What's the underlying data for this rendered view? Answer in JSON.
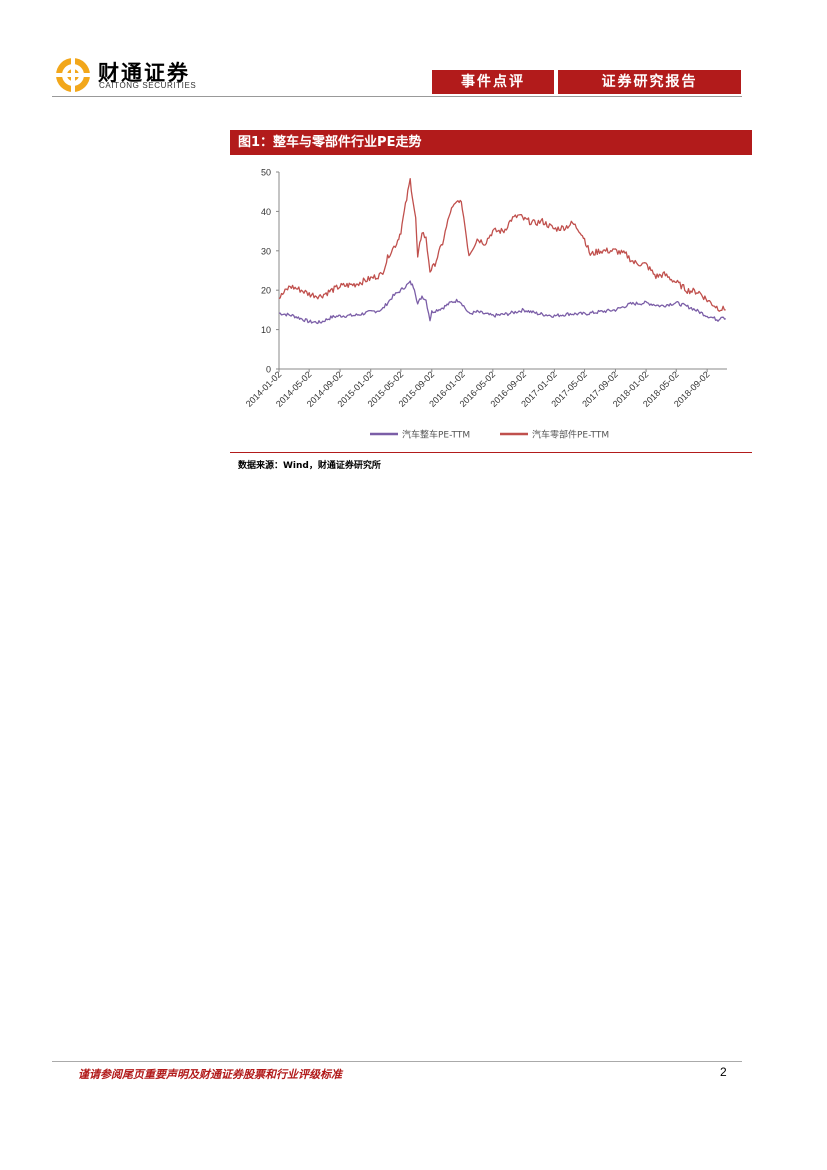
{
  "header": {
    "logo_cn": "财通证券",
    "logo_en": "CAITONG SECURITIES",
    "tag_event": "事件点评",
    "tag_report": "证券研究报告"
  },
  "figure": {
    "title": "图1：整车与零部件行业PE走势",
    "source": "数据来源：Wind，财通证券研究所"
  },
  "chart_data": {
    "type": "line",
    "title": "",
    "xlabel": "",
    "ylabel": "",
    "ylim": [
      0,
      50
    ],
    "yticks": [
      0,
      10,
      20,
      30,
      40,
      50
    ],
    "xticks": [
      "2014-01-02",
      "2014-05-02",
      "2014-09-02",
      "2015-01-02",
      "2015-05-02",
      "2015-09-02",
      "2016-01-02",
      "2016-05-02",
      "2016-09-02",
      "2017-01-02",
      "2017-05-02",
      "2017-09-02",
      "2018-01-02",
      "2018-05-02",
      "2018-09-02"
    ],
    "grid": false,
    "legend": "bottom",
    "series": [
      {
        "name": "汽车整车PE-TTM",
        "color": "#7b5ea7",
        "points": [
          [
            "2014-01-02",
            14.2
          ],
          [
            "2014-03-01",
            13.5
          ],
          [
            "2014-05-02",
            12.0
          ],
          [
            "2014-06-15",
            11.8
          ],
          [
            "2014-08-01",
            13.2
          ],
          [
            "2014-09-02",
            13.5
          ],
          [
            "2014-11-01",
            13.6
          ],
          [
            "2015-01-02",
            14.5
          ],
          [
            "2015-02-15",
            15.0
          ],
          [
            "2015-04-01",
            18.5
          ],
          [
            "2015-05-02",
            20.0
          ],
          [
            "2015-06-08",
            22.0
          ],
          [
            "2015-06-25",
            20.5
          ],
          [
            "2015-07-08",
            16.5
          ],
          [
            "2015-07-25",
            18.5
          ],
          [
            "2015-08-10",
            17.5
          ],
          [
            "2015-08-26",
            12.5
          ],
          [
            "2015-09-02",
            14.5
          ],
          [
            "2015-10-15",
            15.5
          ],
          [
            "2015-11-20",
            17.0
          ],
          [
            "2015-12-20",
            17.5
          ],
          [
            "2016-01-02",
            16.5
          ],
          [
            "2016-01-28",
            14.0
          ],
          [
            "2016-03-01",
            14.5
          ],
          [
            "2016-05-02",
            13.5
          ],
          [
            "2016-07-01",
            14.0
          ],
          [
            "2016-09-02",
            15.0
          ],
          [
            "2016-11-01",
            14.0
          ],
          [
            "2017-01-02",
            13.5
          ],
          [
            "2017-03-01",
            14.0
          ],
          [
            "2017-05-02",
            14.0
          ],
          [
            "2017-07-01",
            14.5
          ],
          [
            "2017-09-02",
            15.0
          ],
          [
            "2017-11-01",
            16.5
          ],
          [
            "2018-01-02",
            16.8
          ],
          [
            "2018-03-01",
            16.0
          ],
          [
            "2018-05-02",
            16.8
          ],
          [
            "2018-07-01",
            15.5
          ],
          [
            "2018-09-02",
            13.5
          ],
          [
            "2018-10-15",
            12.5
          ],
          [
            "2018-11-01",
            13.5
          ],
          [
            "2018-11-15",
            12.8
          ]
        ]
      },
      {
        "name": "汽车零部件PE-TTM",
        "color": "#c0504d",
        "points": [
          [
            "2014-01-02",
            18.0
          ],
          [
            "2014-02-15",
            21.0
          ],
          [
            "2014-04-01",
            20.0
          ],
          [
            "2014-05-02",
            19.0
          ],
          [
            "2014-06-15",
            18.5
          ],
          [
            "2014-08-01",
            20.0
          ],
          [
            "2014-09-02",
            21.0
          ],
          [
            "2014-11-01",
            21.5
          ],
          [
            "2015-01-02",
            23.0
          ],
          [
            "2015-02-15",
            24.0
          ],
          [
            "2015-03-15",
            29.0
          ],
          [
            "2015-04-15",
            32.0
          ],
          [
            "2015-05-02",
            35.0
          ],
          [
            "2015-06-08",
            48.0
          ],
          [
            "2015-06-30",
            38.0
          ],
          [
            "2015-07-08",
            28.0
          ],
          [
            "2015-07-25",
            35.0
          ],
          [
            "2015-08-10",
            33.0
          ],
          [
            "2015-08-26",
            25.0
          ],
          [
            "2015-09-10",
            26.0
          ],
          [
            "2015-10-15",
            32.0
          ],
          [
            "2015-11-15",
            40.0
          ],
          [
            "2015-12-20",
            43.0
          ],
          [
            "2016-01-02",
            41.0
          ],
          [
            "2016-01-28",
            29.0
          ],
          [
            "2016-03-01",
            33.0
          ],
          [
            "2016-04-01",
            32.0
          ],
          [
            "2016-05-02",
            35.0
          ],
          [
            "2016-06-15",
            35.0
          ],
          [
            "2016-07-15",
            38.0
          ],
          [
            "2016-08-15",
            39.0
          ],
          [
            "2016-09-02",
            38.0
          ],
          [
            "2016-10-15",
            37.0
          ],
          [
            "2016-11-15",
            37.5
          ],
          [
            "2017-01-02",
            35.5
          ],
          [
            "2017-02-15",
            36.0
          ],
          [
            "2017-03-15",
            37.0
          ],
          [
            "2017-04-15",
            35.0
          ],
          [
            "2017-05-02",
            33.0
          ],
          [
            "2017-05-25",
            29.0
          ],
          [
            "2017-07-01",
            30.0
          ],
          [
            "2017-09-02",
            30.0
          ],
          [
            "2017-10-15",
            29.0
          ],
          [
            "2017-11-15",
            27.0
          ],
          [
            "2018-01-02",
            26.5
          ],
          [
            "2018-02-10",
            23.5
          ],
          [
            "2018-03-15",
            24.0
          ],
          [
            "2018-05-02",
            22.0
          ],
          [
            "2018-06-15",
            20.0
          ],
          [
            "2018-08-01",
            19.5
          ],
          [
            "2018-09-02",
            17.5
          ],
          [
            "2018-10-15",
            15.5
          ],
          [
            "2018-11-15",
            15.0
          ]
        ]
      }
    ]
  },
  "footer": {
    "disclaimer": "谨请参阅尾页重要声明及财通证券股票和行业评级标准",
    "page_number": "2"
  }
}
